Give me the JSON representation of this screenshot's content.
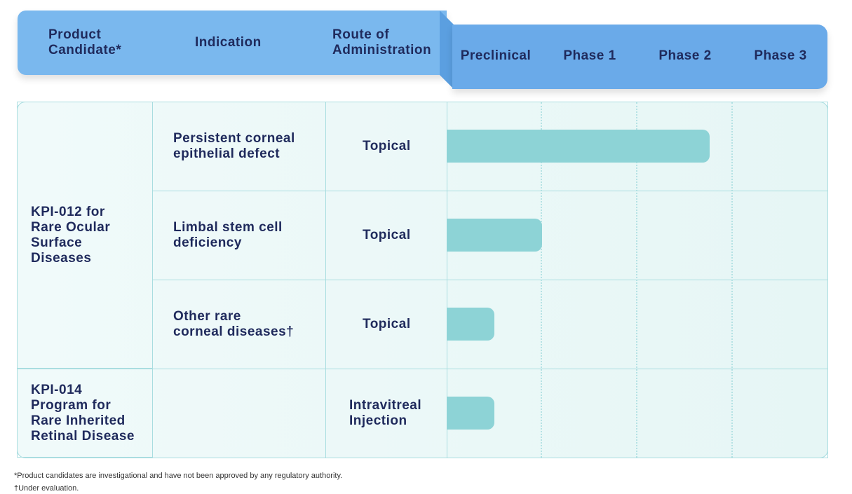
{
  "header": {
    "columns": [
      [
        "Product",
        "Candidate*"
      ],
      [
        "Indication"
      ],
      [
        "Route of",
        "Administration"
      ]
    ],
    "phases": [
      "Preclinical",
      "Phase 1",
      "Phase 2",
      "Phase 3"
    ]
  },
  "progress_scale": [
    0,
    4
  ],
  "programs": [
    {
      "name": [
        "KPI-012 for",
        "Rare Ocular",
        "Surface",
        "Diseases"
      ],
      "rows": [
        {
          "indication": [
            "Persistent corneal",
            "epithelial defect"
          ],
          "route": [
            "Topical"
          ],
          "progress": 2.76
        },
        {
          "indication": [
            "Limbal stem cell",
            "deficiency"
          ],
          "route": [
            "Topical"
          ],
          "progress": 1.0
        },
        {
          "indication": [
            "Other rare",
            "corneal diseases†"
          ],
          "route": [
            "Topical"
          ],
          "progress": 0.5
        }
      ]
    },
    {
      "name": [
        "KPI-014",
        "Program for",
        "Rare Inherited",
        "Retinal Disease"
      ],
      "rows": [
        {
          "indication": [],
          "route": [
            "Intravitreal",
            "Injection"
          ],
          "progress": 0.5
        }
      ]
    }
  ],
  "footnotes": [
    "*Product candidates are investigational and have not been approved by any regulatory authority.",
    "†Under evaluation."
  ]
}
